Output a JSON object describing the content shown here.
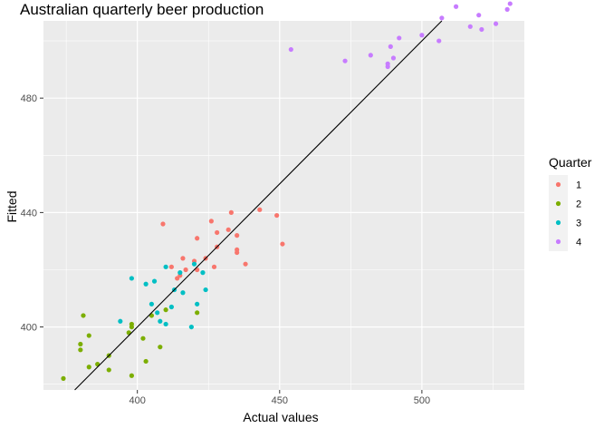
{
  "chart_data": {
    "type": "scatter",
    "title": "Australian quarterly beer production",
    "xlabel": "Actual values",
    "ylabel": "Fitted",
    "xlim": [
      367,
      536
    ],
    "ylim": [
      378,
      507
    ],
    "x_ticks": [
      400,
      450,
      500
    ],
    "y_ticks": [
      400,
      440,
      480
    ],
    "grid": true,
    "reference_line": {
      "intercept": 0,
      "slope": 1,
      "color": "#000000"
    },
    "legend": {
      "title": "Quarter",
      "position": "right",
      "entries": [
        "1",
        "2",
        "3",
        "4"
      ]
    },
    "series": [
      {
        "name": "1",
        "color": "#F8766D",
        "points": [
          [
            409,
            436
          ],
          [
            412,
            421
          ],
          [
            414,
            417
          ],
          [
            415,
            418
          ],
          [
            416,
            424
          ],
          [
            417,
            420
          ],
          [
            420,
            423
          ],
          [
            421,
            420
          ],
          [
            421,
            431
          ],
          [
            424,
            424
          ],
          [
            426,
            437
          ],
          [
            427,
            421
          ],
          [
            428,
            428
          ],
          [
            428,
            433
          ],
          [
            432,
            434
          ],
          [
            433,
            440
          ],
          [
            435,
            432
          ],
          [
            435,
            427
          ],
          [
            435,
            426
          ],
          [
            438,
            422
          ],
          [
            443,
            441
          ],
          [
            449,
            439
          ],
          [
            451,
            429
          ]
        ]
      },
      {
        "name": "2",
        "color": "#7CAE00",
        "points": [
          [
            374,
            382
          ],
          [
            380,
            394
          ],
          [
            380,
            392
          ],
          [
            381,
            404
          ],
          [
            383,
            386
          ],
          [
            383,
            397
          ],
          [
            386,
            387
          ],
          [
            390,
            385
          ],
          [
            390,
            390
          ],
          [
            397,
            398
          ],
          [
            398,
            400
          ],
          [
            398,
            401
          ],
          [
            398,
            383
          ],
          [
            402,
            396
          ],
          [
            403,
            388
          ],
          [
            405,
            404
          ],
          [
            408,
            393
          ],
          [
            410,
            406
          ],
          [
            421,
            405
          ]
        ]
      },
      {
        "name": "3",
        "color": "#00BFC4",
        "points": [
          [
            394,
            402
          ],
          [
            398,
            417
          ],
          [
            403,
            415
          ],
          [
            405,
            408
          ],
          [
            406,
            416
          ],
          [
            407,
            405
          ],
          [
            408,
            402
          ],
          [
            410,
            401
          ],
          [
            410,
            421
          ],
          [
            412,
            407
          ],
          [
            413,
            413
          ],
          [
            415,
            419
          ],
          [
            416,
            412
          ],
          [
            419,
            400
          ],
          [
            420,
            422
          ],
          [
            421,
            408
          ],
          [
            423,
            419
          ],
          [
            424,
            413
          ]
        ]
      },
      {
        "name": "4",
        "color": "#C77CFF",
        "points": [
          [
            454,
            497
          ],
          [
            473,
            493
          ],
          [
            482,
            495
          ],
          [
            488,
            492
          ],
          [
            488,
            491
          ],
          [
            489,
            498
          ],
          [
            490,
            494
          ],
          [
            492,
            501
          ],
          [
            500,
            502
          ],
          [
            506,
            500
          ],
          [
            507,
            508
          ],
          [
            512,
            512
          ],
          [
            517,
            505
          ],
          [
            520,
            509
          ],
          [
            521,
            504
          ],
          [
            526,
            506
          ],
          [
            530,
            511
          ],
          [
            531,
            513
          ]
        ]
      }
    ]
  }
}
